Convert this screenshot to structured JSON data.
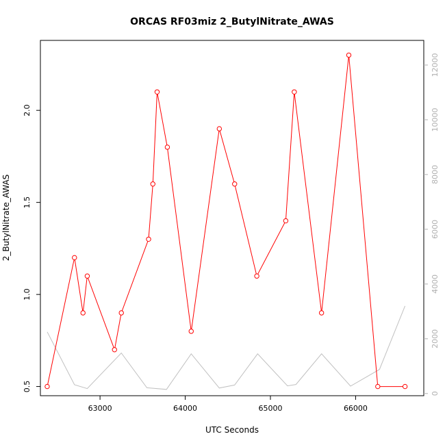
{
  "chart_data": {
    "type": "line",
    "title": "ORCAS RF03miz 2_ButylNitrate_AWAS",
    "xlabel": "UTC Seconds",
    "ylabel": "2_ButylNitrate_AWAS",
    "xlim": [
      62300,
      66800
    ],
    "ylim": [
      0.45,
      2.38
    ],
    "y2lim": [
      -80,
      12900
    ],
    "x_ticks": [
      63000,
      64000,
      65000,
      66000
    ],
    "y_ticks": [
      0.5,
      1.0,
      1.5,
      2.0
    ],
    "y_tick_labels": [
      "0.5",
      "1.0",
      "1.5",
      "2.0"
    ],
    "y2_ticks": [
      0,
      2000,
      4000,
      6000,
      8000,
      10000,
      12000
    ],
    "series": [
      {
        "axis": "left",
        "color": "#ff0000",
        "markers": "open-circle",
        "x": [
          62380,
          62700,
          62800,
          62850,
          63170,
          63250,
          63570,
          63620,
          63670,
          63790,
          64070,
          64400,
          64580,
          64840,
          65180,
          65280,
          65600,
          65920,
          66260,
          66580
        ],
        "y": [
          0.5,
          1.2,
          0.9,
          1.1,
          0.7,
          0.9,
          1.3,
          1.6,
          2.1,
          1.8,
          0.8,
          1.9,
          1.6,
          1.1,
          1.4,
          2.1,
          0.9,
          2.3,
          0.5,
          0.5
        ]
      },
      {
        "axis": "right",
        "color": "#c0c0c0",
        "markers": "none",
        "x": [
          62380,
          62700,
          62850,
          63250,
          63550,
          63780,
          64070,
          64400,
          64580,
          64850,
          65200,
          65300,
          65600,
          65940,
          66280,
          66580
        ],
        "y": [
          2250,
          320,
          180,
          1480,
          210,
          150,
          1450,
          200,
          310,
          1450,
          280,
          330,
          1450,
          270,
          880,
          3200
        ]
      }
    ]
  }
}
